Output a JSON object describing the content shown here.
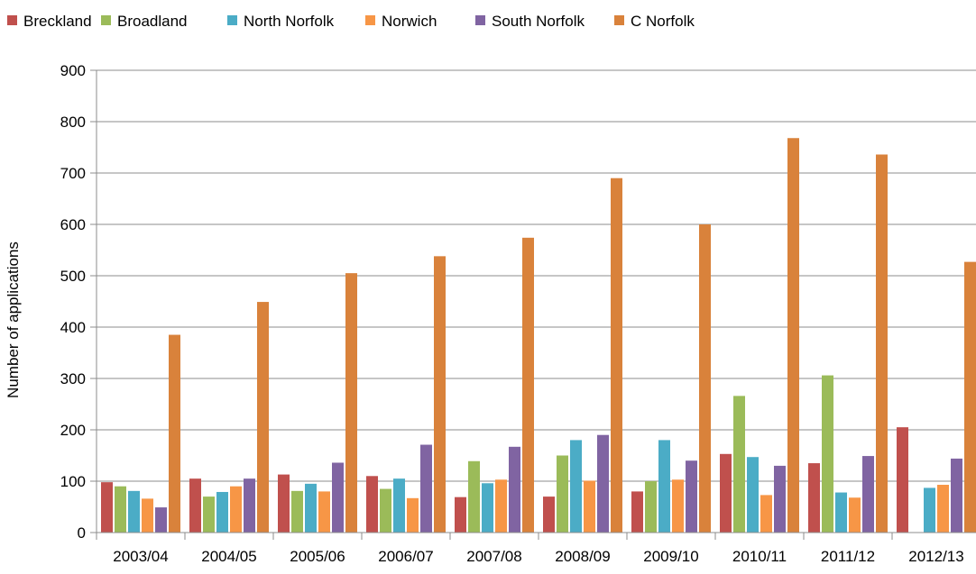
{
  "chart_data": {
    "type": "bar",
    "title": "",
    "xlabel": "",
    "ylabel": "Number of applications",
    "ylim": [
      0,
      900
    ],
    "yticks": [
      0,
      100,
      200,
      300,
      400,
      500,
      600,
      700,
      800,
      900
    ],
    "grid": "horizontal",
    "legend_position": "top",
    "categories": [
      "2003/04",
      "2004/05",
      "2005/06",
      "2006/07",
      "2007/08",
      "2008/09",
      "2009/10",
      "2010/11",
      "2011/12",
      "2012/13"
    ],
    "series": [
      {
        "name": "Breckland",
        "color": "#C0504D",
        "values": [
          98,
          105,
          113,
          110,
          69,
          70,
          80,
          153,
          135,
          205
        ]
      },
      {
        "name": "Broadland",
        "color": "#9BBB59",
        "values": [
          90,
          70,
          81,
          85,
          139,
          150,
          100,
          266,
          306,
          0
        ]
      },
      {
        "name": "North Norfolk",
        "color": "#4BACC6",
        "values": [
          81,
          79,
          95,
          105,
          96,
          180,
          180,
          147,
          78,
          87
        ]
      },
      {
        "name": "Norwich",
        "color": "#F79646",
        "values": [
          66,
          90,
          80,
          67,
          103,
          101,
          103,
          73,
          68,
          93
        ]
      },
      {
        "name": "South Norfolk",
        "color": "#8064A2",
        "values": [
          49,
          105,
          136,
          171,
          167,
          190,
          140,
          130,
          149,
          144
        ]
      },
      {
        "name": "C Norfolk",
        "color": "#D9823B",
        "values": [
          385,
          449,
          505,
          538,
          574,
          690,
          600,
          768,
          736,
          527
        ]
      }
    ]
  }
}
